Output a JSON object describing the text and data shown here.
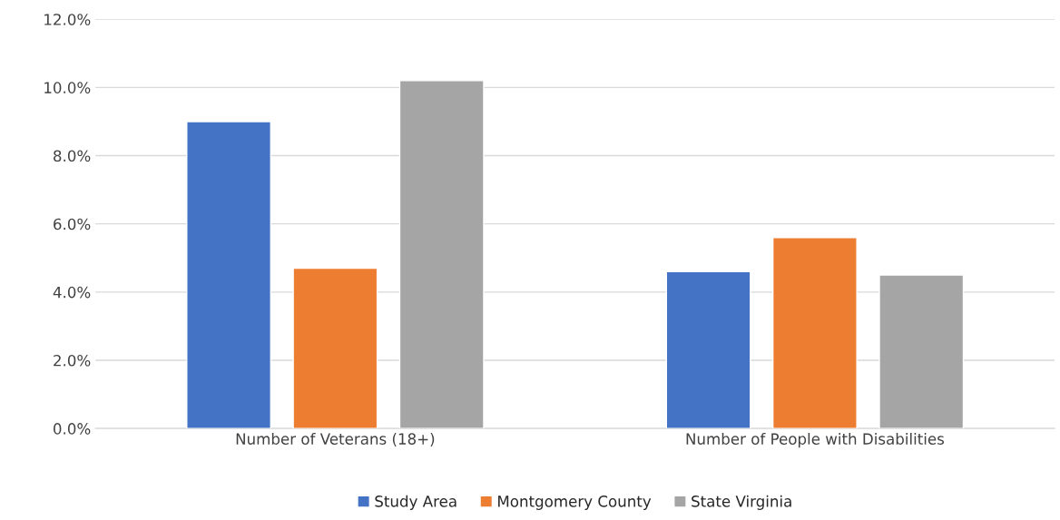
{
  "chart_data": {
    "type": "bar",
    "categories": [
      "Number of Veterans (18+)",
      "Number of People with Disabilities"
    ],
    "series": [
      {
        "name": "Study Area",
        "color": "#4472c4",
        "values": [
          9.0,
          4.6
        ]
      },
      {
        "name": "Montgomery County",
        "color": "#ed7d31",
        "values": [
          4.7,
          5.6
        ]
      },
      {
        "name": "State Virginia",
        "color": "#a5a5a5",
        "values": [
          10.2,
          4.5
        ]
      }
    ],
    "ylim": [
      0,
      12
    ],
    "yticks": [
      {
        "value": 0,
        "label": "0.0%"
      },
      {
        "value": 2,
        "label": "2.0%"
      },
      {
        "value": 4,
        "label": "4.0%"
      },
      {
        "value": 6,
        "label": "6.0%"
      },
      {
        "value": 8,
        "label": "8.0%"
      },
      {
        "value": 10,
        "label": "10.0%"
      },
      {
        "value": 12,
        "label": "12.0%"
      }
    ],
    "grid": "y",
    "legend": "bottom"
  }
}
